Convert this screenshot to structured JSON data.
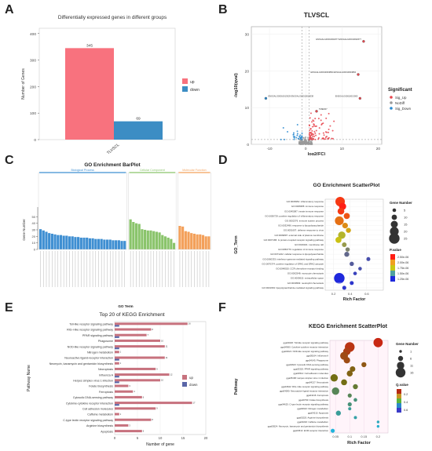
{
  "panels": {
    "a": "A",
    "b": "B",
    "c": "C",
    "d": "D",
    "e": "E",
    "f": "F"
  },
  "chart_data": [
    {
      "id": "A",
      "type": "bar",
      "title": "Differentially expressed genes in different groups",
      "ylabel": "Number of Genes",
      "categories": [
        "TLVSCL"
      ],
      "series": [
        {
          "name": "up",
          "values": [
            345
          ],
          "color": "#f8727e"
        },
        {
          "name": "down",
          "values": [
            69
          ],
          "color": "#3c8dc4"
        }
      ],
      "ylim": [
        0,
        420
      ],
      "yticks": [
        0,
        100,
        200,
        300,
        400
      ],
      "legend": "right"
    },
    {
      "id": "B",
      "type": "scatter",
      "title": "TLVSCL",
      "xlabel": "log2(FC)",
      "ylabel": "-log10(qval)",
      "xlim": [
        -15,
        21
      ],
      "ylim": [
        0,
        32
      ],
      "xticks": [
        -10,
        0,
        10,
        20
      ],
      "yticks": [
        0,
        10,
        20,
        30
      ],
      "legend_title": "Significant",
      "legend_items": [
        {
          "label": "Sig_Up",
          "color": "#e7474f"
        },
        {
          "label": "NoDiff",
          "color": "#9a9a9a"
        },
        {
          "label": "Sig_Down",
          "color": "#2b8bd0"
        }
      ],
      "labeled_points": [
        {
          "x": 16,
          "y": 28,
          "label": "ENSGALG00010002677 ENSGALG00010002677",
          "group": "up"
        },
        {
          "x": 14.5,
          "y": 19,
          "label": "ENSGALG00010003884 ENSGALG00010003884",
          "group": "up"
        },
        {
          "x": -11,
          "y": 12.5,
          "label": "ENSGALG00010013029 ENSGALG00010013038",
          "group": "down"
        },
        {
          "x": 15,
          "y": 12.5,
          "label": "ENSGALG00010013005",
          "group": "up"
        },
        {
          "x": 3,
          "y": 9,
          "label": "TMEM27",
          "group": "up"
        }
      ]
    },
    {
      "id": "C",
      "type": "bar",
      "title": "GO Enrichment BarPlot",
      "ylabel": "Gene Number",
      "groups": [
        {
          "name": "Biological Process",
          "color": "#3f8fd2",
          "values": [
            31,
            29,
            27,
            25,
            24,
            23,
            22,
            22,
            21,
            21,
            20,
            20,
            19,
            19,
            18,
            18,
            18,
            17,
            17,
            16,
            16,
            16,
            15,
            15,
            15,
            14,
            14,
            14,
            13,
            13
          ]
        },
        {
          "name": "Cellular Component",
          "color": "#8ac46b",
          "values": [
            46,
            42,
            40,
            39,
            31,
            30,
            29,
            29,
            28,
            27,
            26,
            22,
            20,
            18,
            16,
            10
          ]
        },
        {
          "name": "Molecular Function",
          "color": "#f3a05a",
          "values": [
            36,
            35,
            28,
            27,
            25,
            24,
            23,
            23,
            22,
            20,
            20
          ]
        }
      ],
      "ylim": [
        0,
        60
      ],
      "yticks": [
        0,
        10,
        20,
        30,
        40,
        50
      ]
    },
    {
      "id": "D",
      "type": "scatter",
      "title": "GO Enrichment ScatterPlot",
      "xlabel": "Rich Factor",
      "ylabel": "GO_Term",
      "xlim": [
        0.1,
        0.8
      ],
      "xticks": [
        0.2,
        0.4,
        0.6
      ],
      "terms": [
        {
          "id": "GO:0006954",
          "label": "inflammatory response",
          "rich": 0.28,
          "count": 22,
          "p": 2.4e-06
        },
        {
          "id": "GO:0006955",
          "label": "immune response",
          "rich": 0.31,
          "count": 15,
          "p": 2.5e-06
        },
        {
          "id": "GO:0045087",
          "label": "innate immune response",
          "rich": 0.29,
          "count": 14,
          "p": 2.4e-06
        },
        {
          "id": "GO:0050729",
          "label": "positive regulation of inflammatory response",
          "rich": 0.36,
          "count": 12,
          "p": 2.3e-06
        },
        {
          "id": "GO:0002376",
          "label": "immune system process",
          "rich": 0.27,
          "count": 20,
          "p": 2.2e-06
        },
        {
          "id": "GO:0032496",
          "label": "response to lipopolysaccharide",
          "rich": 0.34,
          "count": 11,
          "p": 2.1e-06
        },
        {
          "id": "GO:0051607",
          "label": "defense response to virus",
          "rich": 0.38,
          "count": 9,
          "p": 2e-06
        },
        {
          "id": "GO:0009897",
          "label": "external side of plasma membrane",
          "rich": 0.3,
          "count": 16,
          "p": 1.8e-06
        },
        {
          "id": "GO:0007186",
          "label": "G protein-coupled receptor signaling pathway",
          "rich": 0.26,
          "count": 12,
          "p": 1.9e-06
        },
        {
          "id": "GO:0016021",
          "label": "membrane raft",
          "rich": 0.33,
          "count": 8,
          "p": 1.7e-06
        },
        {
          "id": "GO:0050776",
          "label": "regulation of immune response",
          "rich": 0.37,
          "count": 7,
          "p": 1.6e-06
        },
        {
          "id": "GO:0071222",
          "label": "cellular response to lipopolysaccharide",
          "rich": 0.36,
          "count": 9,
          "p": 1.5e-06
        },
        {
          "id": "GO:0060333",
          "label": "interferon-gamma-mediated signaling pathway",
          "rich": 0.62,
          "count": 6,
          "p": 1.4e-06
        },
        {
          "id": "GO:0070374",
          "label": "positive regulation of ERK1 and ERK2 cascade",
          "rich": 0.42,
          "count": 7,
          "p": 1.45e-06
        },
        {
          "id": "GO:0048020",
          "label": "CCR chemokine receptor binding",
          "rich": 0.52,
          "count": 5,
          "p": 1.4e-06
        },
        {
          "id": "GO:0002548",
          "label": "monocyte chemotaxis",
          "rich": 0.46,
          "count": 5,
          "p": 1.35e-06
        },
        {
          "id": "GO:0005615",
          "label": "extracellular space",
          "rich": 0.27,
          "count": 25,
          "p": 1.25e-06
        },
        {
          "id": "GO:0030593",
          "label": "neutrophil chemotaxis",
          "rich": 0.42,
          "count": 6,
          "p": 1.3e-06
        },
        {
          "id": "GO:0031663",
          "label": "lipopolysaccharide-mediated signaling pathway",
          "rich": 0.33,
          "count": 6,
          "p": 1.3e-06
        }
      ],
      "size_legend_title": "Gene Number",
      "size_legend": [
        5,
        10,
        15,
        20,
        25
      ],
      "color_legend_title": "P.value",
      "color_legend": [
        "2.50e-06",
        "2.00e-06",
        "1.75e-06",
        "1.50e-06",
        "1.25e-06"
      ]
    },
    {
      "id": "E",
      "type": "bar",
      "title": "Top 20 of KEGG Enrichment",
      "subtitle": "GO Term",
      "xlabel": "Number of gene",
      "ylabel": "Pathway Name",
      "xlim": [
        0,
        20
      ],
      "xticks": [
        0,
        5,
        10,
        15,
        20
      ],
      "legend_items": [
        {
          "label": "up",
          "color": "#c7727e"
        },
        {
          "label": "down",
          "color": "#5a66a8"
        }
      ],
      "categories": [
        "Toll-like receptor signaling pathway",
        "RIG-I-like receptor signaling pathway",
        "PPAR signaling pathway",
        "Phagosome",
        "NOD-like receptor signaling pathway",
        "Nitrogen metabolism",
        "Neuroactive ligand-receptor interaction",
        "Neomycin, kanamycin and gentamicin biosynthesis",
        "Necroptosis",
        "Influenza A",
        "Herpes simplex virus 1 infection",
        "Folate biosynthesis",
        "Ferroptosis",
        "Cytosolic DNA-sensing pathway",
        "Cytokine-cytokine receptor interaction",
        "Cell adhesion molecules",
        "Caffeine metabolism",
        "C-type lectin receptor signaling pathway",
        "Arginine biosynthesis",
        "Apoptosis"
      ],
      "series": [
        {
          "name": "up",
          "values": [
            16,
            8,
            7,
            10,
            11,
            1,
            11,
            1,
            9,
            12,
            10,
            3,
            4,
            6,
            17,
            9,
            1,
            8,
            3,
            6
          ]
        },
        {
          "name": "down",
          "values": [
            1,
            0,
            1,
            0,
            1,
            0,
            1,
            0,
            0,
            1,
            1,
            0,
            0,
            0,
            1,
            0,
            0,
            0,
            0,
            0
          ]
        }
      ]
    },
    {
      "id": "F",
      "type": "scatter",
      "title": "KEGG Enrichment ScatterPlot",
      "xlabel": "Rich Factor",
      "ylabel": "Pathway",
      "xlim": [
        0.03,
        0.235
      ],
      "xticks": [
        0.05,
        0.1,
        0.15,
        0.2
      ],
      "terms": [
        {
          "id": "gga04620",
          "label": "Toll-like receptor signaling pathway",
          "rich": 0.2,
          "count": 15,
          "q": 0.1
        },
        {
          "id": "gga04060",
          "label": "Cytokine-cytokine receptor interaction",
          "rich": 0.1,
          "count": 16,
          "q": 0.15
        },
        {
          "id": "gga04621",
          "label": "NOD-like receptor signaling pathway",
          "rich": 0.09,
          "count": 11,
          "q": 0.2
        },
        {
          "id": "gga05164",
          "label": "Influenza A",
          "rich": 0.08,
          "count": 12,
          "q": 0.25
        },
        {
          "id": "gga04145",
          "label": "Phagosome",
          "rich": 0.09,
          "count": 9,
          "q": 0.25
        },
        {
          "id": "gga04623",
          "label": "Cytosolic DNA-sensing pathway",
          "rich": 0.15,
          "count": 6,
          "q": 0.3
        },
        {
          "id": "gga03320",
          "label": "PPAR signaling pathway",
          "rich": 0.11,
          "count": 7,
          "q": 0.35
        },
        {
          "id": "gga04514",
          "label": "Cell adhesion molecules",
          "rich": 0.1,
          "count": 8,
          "q": 0.35
        },
        {
          "id": "gga05168",
          "label": "Herpes simplex virus 1 infection",
          "rich": 0.045,
          "count": 11,
          "q": 0.4
        },
        {
          "id": "gga04217",
          "label": "Necroptosis",
          "rich": 0.08,
          "count": 8,
          "q": 0.4
        },
        {
          "id": "gga04622",
          "label": "RIG-I-like receptor signaling pathway",
          "rich": 0.12,
          "count": 6,
          "q": 0.45
        },
        {
          "id": "gga04080",
          "label": "Neuroactive ligand-receptor interaction",
          "rich": 0.05,
          "count": 11,
          "q": 0.5
        },
        {
          "id": "gga04216",
          "label": "Ferroptosis",
          "rich": 0.1,
          "count": 4,
          "q": 0.5
        },
        {
          "id": "gga00790",
          "label": "Folate biosynthesis",
          "rich": 0.12,
          "count": 3,
          "q": 0.55
        },
        {
          "id": "gga04625",
          "label": "C-type lectin receptor signaling pathway",
          "rich": 0.1,
          "count": 4,
          "q": 0.55
        },
        {
          "id": "gga00910",
          "label": "Nitrogen metabolism",
          "rich": 0.1,
          "count": 2,
          "q": 0.6
        },
        {
          "id": "gga04210",
          "label": "Apoptosis",
          "rich": 0.06,
          "count": 6,
          "q": 0.6
        },
        {
          "id": "gga00220",
          "label": "Arginine biosynthesis",
          "rich": 0.12,
          "count": 2,
          "q": 0.62
        },
        {
          "id": "gga00232",
          "label": "Caffeine metabolism",
          "rich": 0.2,
          "count": 1,
          "q": 0.65
        },
        {
          "id": "gga00524",
          "label": "Neomycin, kanamycin and gentamicin biosynthesis",
          "rich": 0.2,
          "count": 1,
          "q": 0.68
        },
        {
          "id": "gga04512",
          "label": "ECM-receptor interaction",
          "rich": 0.04,
          "count": 4,
          "q": 0.7
        }
      ],
      "size_legend_title": "Gene Number",
      "size_legend": [
        1,
        6,
        11,
        16
      ],
      "color_legend_title": "Q.value",
      "color_legend": [
        "0.2",
        "0.4",
        "0.6"
      ]
    }
  ]
}
